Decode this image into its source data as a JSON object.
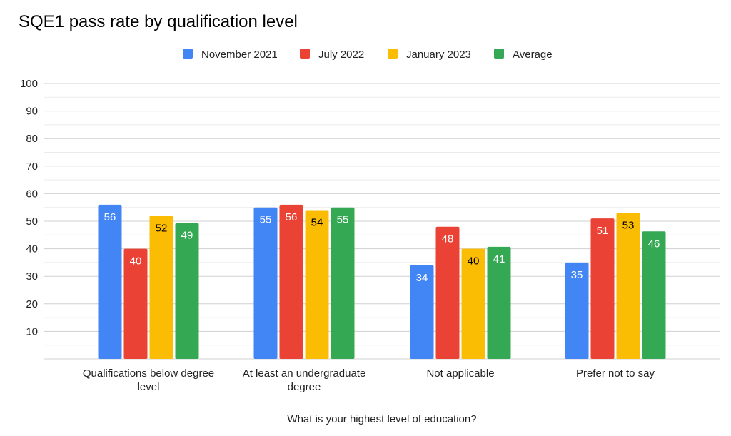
{
  "chart_data": {
    "type": "bar",
    "title": "SQE1 pass rate by qualification level",
    "xlabel": "What is your highest level of education?",
    "ylabel": "",
    "ylim": [
      0,
      100
    ],
    "yticks": [
      10,
      20,
      30,
      40,
      50,
      60,
      70,
      80,
      90,
      100
    ],
    "grid": true,
    "legend_position": "top",
    "categories": [
      [
        "Qualifications below degree",
        "level"
      ],
      [
        "At least an undergraduate",
        "degree"
      ],
      [
        "Not applicable"
      ],
      [
        "Prefer not to say"
      ]
    ],
    "series": [
      {
        "name": "November 2021",
        "color": "#4285f4",
        "label_color": "#ffffff",
        "values": [
          56,
          55,
          34,
          35
        ]
      },
      {
        "name": "July 2022",
        "color": "#ea4335",
        "label_color": "#ffffff",
        "values": [
          40,
          56,
          48,
          51
        ]
      },
      {
        "name": "January 2023",
        "color": "#fbbc04",
        "label_color": "#000000",
        "values": [
          52,
          54,
          40,
          53
        ]
      },
      {
        "name": "Average",
        "color": "#34a853",
        "label_color": "#ffffff",
        "values": [
          49.3,
          55,
          40.7,
          46.3
        ]
      }
    ]
  }
}
